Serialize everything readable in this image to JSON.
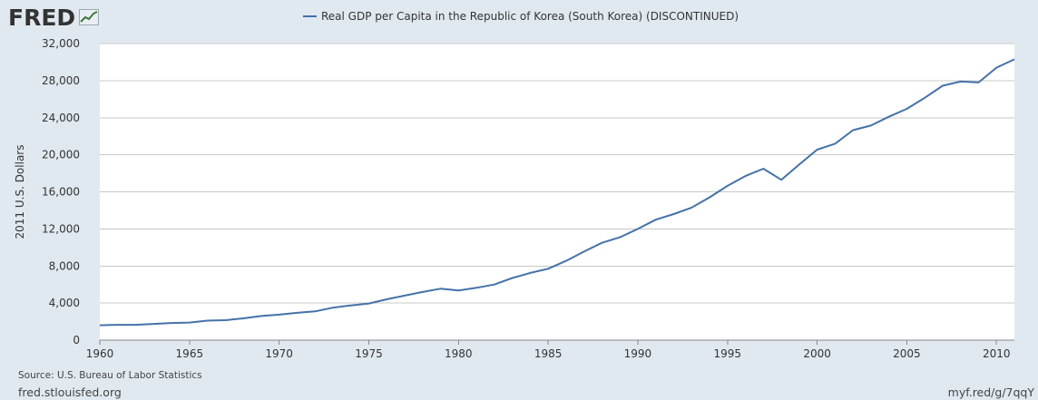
{
  "brand": {
    "logo_text": "FRED",
    "logo_icon": "trend-graph-icon"
  },
  "footer": {
    "source": "Source: U.S. Bureau of Labor Statistics",
    "site": "fred.stlouisfed.org",
    "short_link": "myf.red/g/7qqY"
  },
  "colors": {
    "background": "#e1e9f0",
    "plot_bg": "#ffffff",
    "series": "#4572a7",
    "grid": "#c8c8c8"
  },
  "chart_data": {
    "type": "line",
    "title": "",
    "xlabel": "",
    "ylabel": "2011 U.S. Dollars",
    "xlim": [
      1960,
      2011
    ],
    "ylim": [
      0,
      32000
    ],
    "x_ticks": [
      1960,
      1965,
      1970,
      1975,
      1980,
      1985,
      1990,
      1995,
      2000,
      2005,
      2010
    ],
    "y_ticks": [
      0,
      4000,
      8000,
      12000,
      16000,
      20000,
      24000,
      28000,
      32000
    ],
    "y_tick_labels": [
      "0",
      "4,000",
      "8,000",
      "12,000",
      "16,000",
      "20,000",
      "24,000",
      "28,000",
      "32,000"
    ],
    "grid": true,
    "legend_position": "top-center",
    "series": [
      {
        "name": "Real GDP per Capita in the Republic of Korea (South Korea) (DISCONTINUED)",
        "x": [
          1960,
          1961,
          1962,
          1963,
          1964,
          1965,
          1966,
          1967,
          1968,
          1969,
          1970,
          1971,
          1972,
          1973,
          1974,
          1975,
          1976,
          1977,
          1978,
          1979,
          1980,
          1981,
          1982,
          1983,
          1984,
          1985,
          1986,
          1987,
          1988,
          1989,
          1990,
          1991,
          1992,
          1993,
          1994,
          1995,
          1996,
          1997,
          1998,
          1999,
          2000,
          2001,
          2002,
          2003,
          2004,
          2005,
          2006,
          2007,
          2008,
          2009,
          2010,
          2011
        ],
        "y": [
          1600,
          1650,
          1650,
          1750,
          1850,
          1900,
          2100,
          2150,
          2350,
          2600,
          2750,
          2950,
          3100,
          3500,
          3750,
          3950,
          4400,
          4800,
          5200,
          5550,
          5350,
          5650,
          6000,
          6700,
          7250,
          7700,
          8550,
          9550,
          10500,
          11100,
          12000,
          13000,
          13600,
          14300,
          15400,
          16650,
          17700,
          18500,
          17300,
          18950,
          20550,
          21200,
          22650,
          23150,
          24100,
          24950,
          26150,
          27450,
          27900,
          27800,
          29400,
          30300
        ]
      }
    ]
  }
}
